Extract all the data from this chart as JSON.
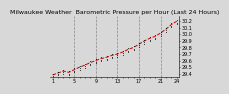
{
  "title": "Milwaukee Weather  Barometric Pressure per Hour (Last 24 Hours)",
  "background_color": "#d8d8d8",
  "plot_bg_color": "#d8d8d8",
  "grid_color": "#888888",
  "line_color": "#cc0000",
  "scatter_color": "#000000",
  "y_min": 29.35,
  "y_max": 30.28,
  "x_values": [
    1,
    2,
    3,
    4,
    5,
    6,
    7,
    8,
    9,
    10,
    11,
    12,
    13,
    14,
    15,
    16,
    17,
    18,
    19,
    20,
    21,
    22,
    23,
    24
  ],
  "y_line": [
    29.38,
    29.41,
    29.44,
    29.42,
    29.46,
    29.5,
    29.53,
    29.57,
    29.6,
    29.63,
    29.65,
    29.68,
    29.7,
    29.73,
    29.77,
    29.8,
    29.85,
    29.9,
    29.94,
    29.97,
    30.02,
    30.08,
    30.15,
    30.2
  ],
  "scatter_points": [
    [
      1,
      29.36
    ],
    [
      1,
      29.4
    ],
    [
      1,
      29.34
    ],
    [
      2,
      29.39
    ],
    [
      2,
      29.43
    ],
    [
      2,
      29.38
    ],
    [
      3,
      29.42
    ],
    [
      3,
      29.46
    ],
    [
      3,
      29.4
    ],
    [
      4,
      29.4
    ],
    [
      4,
      29.44
    ],
    [
      4,
      29.38
    ],
    [
      5,
      29.44
    ],
    [
      5,
      29.48
    ],
    [
      5,
      29.42
    ],
    [
      6,
      29.48
    ],
    [
      6,
      29.52
    ],
    [
      6,
      29.46
    ],
    [
      7,
      29.51
    ],
    [
      7,
      29.55
    ],
    [
      7,
      29.49
    ],
    [
      8,
      29.55
    ],
    [
      8,
      29.59
    ],
    [
      8,
      29.53
    ],
    [
      9,
      29.58
    ],
    [
      9,
      29.62
    ],
    [
      9,
      29.56
    ],
    [
      10,
      29.61
    ],
    [
      10,
      29.65
    ],
    [
      10,
      29.59
    ],
    [
      11,
      29.63
    ],
    [
      11,
      29.67
    ],
    [
      11,
      29.61
    ],
    [
      12,
      29.66
    ],
    [
      12,
      29.7
    ],
    [
      12,
      29.64
    ],
    [
      13,
      29.68
    ],
    [
      13,
      29.72
    ],
    [
      13,
      29.66
    ],
    [
      14,
      29.71
    ],
    [
      14,
      29.75
    ],
    [
      14,
      29.69
    ],
    [
      15,
      29.75
    ],
    [
      15,
      29.79
    ],
    [
      15,
      29.73
    ],
    [
      16,
      29.78
    ],
    [
      16,
      29.82
    ],
    [
      16,
      29.76
    ],
    [
      17,
      29.83
    ],
    [
      17,
      29.87
    ],
    [
      17,
      29.81
    ],
    [
      18,
      29.88
    ],
    [
      18,
      29.92
    ],
    [
      18,
      29.86
    ],
    [
      19,
      29.92
    ],
    [
      19,
      29.96
    ],
    [
      19,
      29.9
    ],
    [
      20,
      29.95
    ],
    [
      20,
      29.99
    ],
    [
      20,
      29.93
    ],
    [
      21,
      30.0
    ],
    [
      21,
      30.04
    ],
    [
      21,
      29.98
    ],
    [
      22,
      30.06
    ],
    [
      22,
      30.1
    ],
    [
      22,
      30.04
    ],
    [
      23,
      30.13
    ],
    [
      23,
      30.17
    ],
    [
      23,
      30.11
    ],
    [
      24,
      30.18
    ],
    [
      24,
      30.22
    ],
    [
      24,
      30.16
    ]
  ],
  "vgrid_positions": [
    5,
    9,
    13,
    17,
    21
  ],
  "x_tick_labels": [
    "1",
    "",
    "",
    "",
    "5",
    "",
    "",
    "",
    "9",
    "",
    "",
    "",
    "13",
    "",
    "",
    "",
    "17",
    "",
    "",
    "",
    "21",
    "",
    "",
    "24"
  ],
  "y_ticks": [
    29.4,
    29.5,
    29.6,
    29.7,
    29.8,
    29.9,
    30.0,
    30.1,
    30.2
  ],
  "y_tick_labels": [
    "29.4",
    "29.5",
    "29.6",
    "29.7",
    "29.8",
    "29.9",
    "30.0",
    "30.1",
    "30.2"
  ],
  "title_fontsize": 4.5,
  "tick_fontsize": 3.5
}
